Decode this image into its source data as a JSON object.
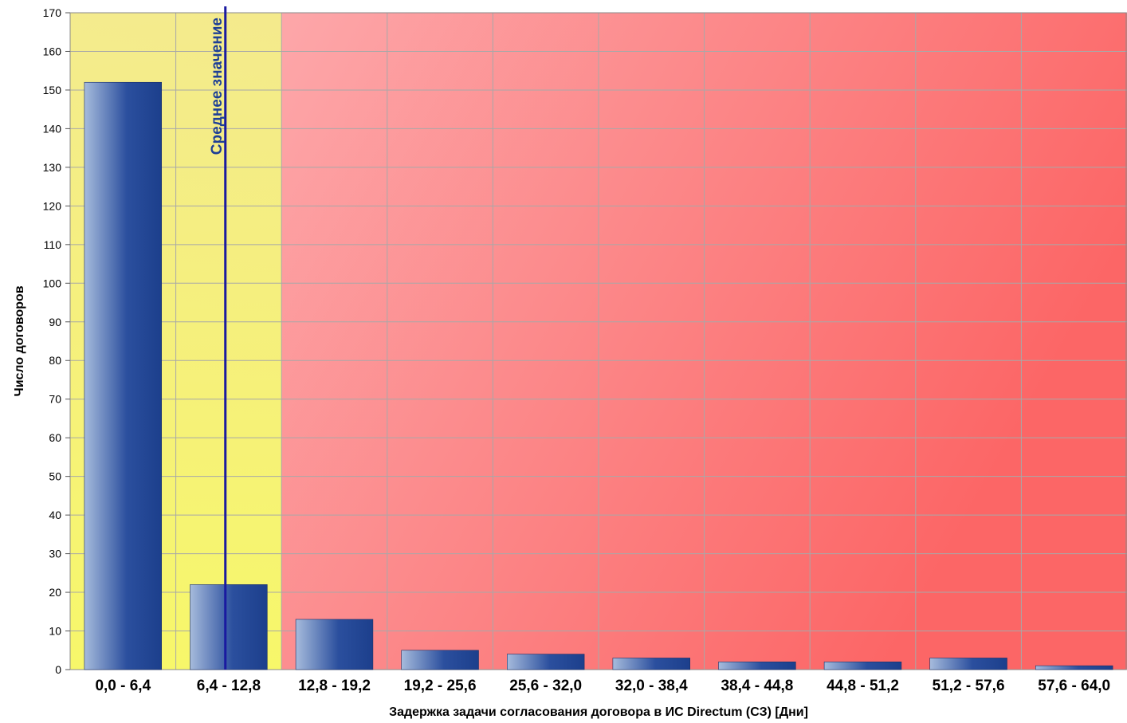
{
  "chart_data": {
    "type": "bar",
    "title": "",
    "xlabel": "Задержка задачи согласования договора в ИС Directum (СЗ) [Дни]",
    "ylabel": "Число договоров",
    "categories": [
      "0,0 - 6,4",
      "6,4 - 12,8",
      "12,8 - 19,2",
      "19,2 - 25,6",
      "25,6 - 32,0",
      "32,0 - 38,4",
      "38,4 - 44,8",
      "44,8 - 51,2",
      "51,2 - 57,6",
      "57,6 - 64,0"
    ],
    "values": [
      152,
      22,
      13,
      5,
      4,
      3,
      2,
      2,
      3,
      1
    ],
    "ylim": [
      0,
      170
    ],
    "yticks": [
      0,
      10,
      20,
      30,
      40,
      50,
      60,
      70,
      80,
      90,
      100,
      110,
      120,
      130,
      140,
      150,
      160,
      170
    ],
    "grid": true,
    "highlight_band": {
      "x_from": 0,
      "x_to": 12.8,
      "color": "#f7f76a"
    },
    "mean_line": {
      "x": 9.4,
      "label": "Среднее значение",
      "color": "#1a1aa0"
    },
    "colors": {
      "bar_light": "#a6bbdc",
      "bar_dark": "#1c3f8c",
      "background_light": "#fdb5b8",
      "background_dark": "#fc6666",
      "grid": "#a8a8a8"
    }
  }
}
